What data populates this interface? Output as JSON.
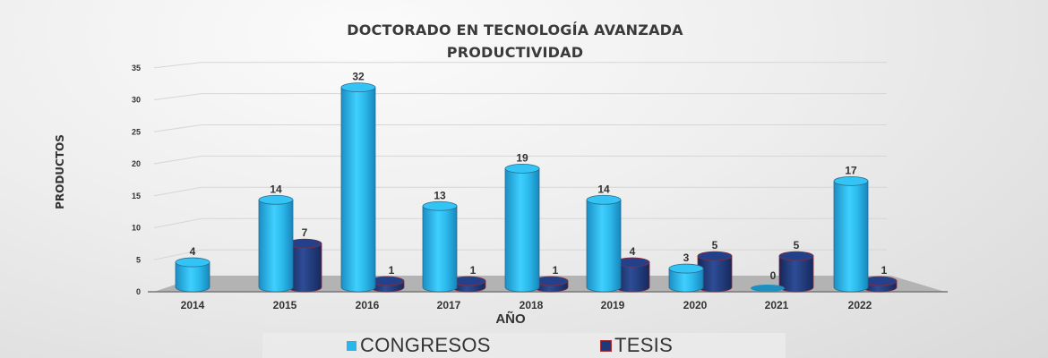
{
  "title": {
    "line1": "DOCTORADO EN TECNOLOGÍA AVANZADA",
    "line2": "PRODUCTIVIDAD"
  },
  "axes": {
    "ylabel": "PRODUCTOS",
    "xlabel": "AÑO"
  },
  "legend": {
    "items": [
      {
        "label": "CONGRESOS",
        "color": "#29b6e8"
      },
      {
        "label": "TESIS",
        "color": "#1f3a7a"
      }
    ]
  },
  "colors": {
    "congresos": "#29b6e8",
    "tesis": "#1f3a7a",
    "floor": "#b3b3b3"
  },
  "chart_data": {
    "type": "bar",
    "title": "DOCTORADO EN TECNOLOGÍA AVANZADA PRODUCTIVIDAD",
    "xlabel": "AÑO",
    "ylabel": "PRODUCTOS",
    "categories": [
      "2014",
      "2015",
      "2016",
      "2017",
      "2018",
      "2019",
      "2020",
      "2021",
      "2022"
    ],
    "series": [
      {
        "name": "CONGRESOS",
        "values": [
          4,
          14,
          32,
          13,
          19,
          14,
          3,
          0,
          17
        ]
      },
      {
        "name": "TESIS",
        "values": [
          null,
          7,
          1,
          1,
          1,
          4,
          5,
          5,
          1
        ]
      }
    ],
    "yticks": [
      0,
      5,
      10,
      15,
      20,
      25,
      30,
      35
    ],
    "ylim": [
      0,
      35
    ],
    "grid": true,
    "legend_position": "bottom",
    "style": "3d-cylinder"
  }
}
